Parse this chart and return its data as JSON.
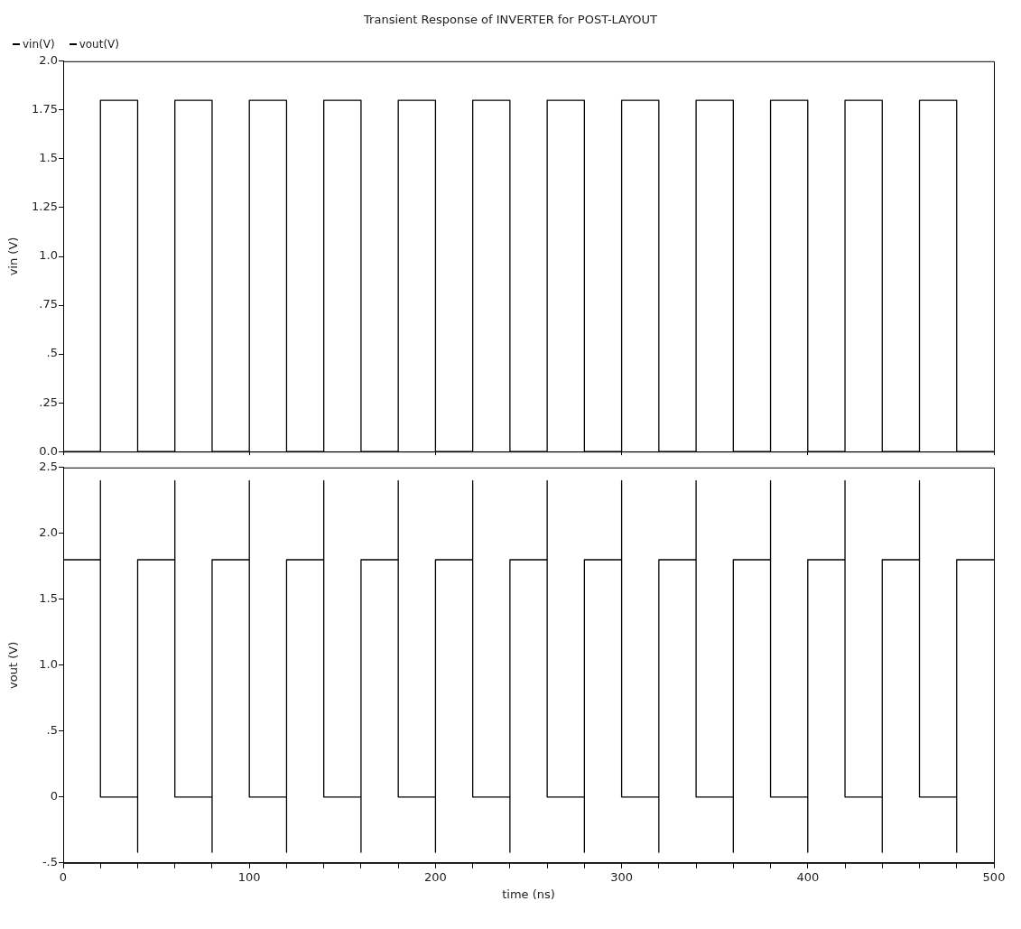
{
  "chart_data": [
    {
      "type": "line",
      "title": "Transient Response of INVERTER for POST-LAYOUT",
      "ylabel": "vin (V)",
      "legend": "top left",
      "grid": false,
      "tick_labels": "y",
      "marker": "none",
      "line_style": "solid",
      "xlim": [
        0,
        500
      ],
      "xticks": [
        0,
        100,
        200,
        300,
        400,
        500
      ],
      "ylim": [
        0,
        2.0
      ],
      "yticks": [
        {
          "value": 0,
          "label": "0.0"
        },
        {
          "value": 0.25,
          "label": ".25"
        },
        {
          "value": 0.5,
          "label": ".5"
        },
        {
          "value": 0.75,
          "label": ".75"
        },
        {
          "value": 1.0,
          "label": "1.0"
        },
        {
          "value": 1.25,
          "label": "1.25"
        },
        {
          "value": 1.5,
          "label": "1.5"
        },
        {
          "value": 1.75,
          "label": "1.75"
        },
        {
          "value": 2.0,
          "label": "2.0"
        }
      ],
      "series": [
        {
          "name": "vin(V)",
          "color": "#000000",
          "x": [
            0,
            20,
            20,
            40,
            40,
            60,
            60,
            80,
            80,
            100,
            100,
            120,
            120,
            140,
            140,
            160,
            160,
            180,
            180,
            200,
            200,
            220,
            220,
            240,
            240,
            260,
            260,
            280,
            280,
            300,
            300,
            320,
            320,
            340,
            340,
            360,
            360,
            380,
            380,
            400,
            400,
            420,
            420,
            440,
            440,
            460,
            460,
            480,
            480,
            500
          ],
          "values": [
            0,
            0,
            1.8,
            1.8,
            0,
            0,
            1.8,
            1.8,
            0,
            0,
            1.8,
            1.8,
            0,
            0,
            1.8,
            1.8,
            0,
            0,
            1.8,
            1.8,
            0,
            0,
            1.8,
            1.8,
            0,
            0,
            1.8,
            1.8,
            0,
            0,
            1.8,
            1.8,
            0,
            0,
            1.8,
            1.8,
            0,
            0,
            1.8,
            1.8,
            0,
            0,
            1.8,
            1.8,
            0,
            0,
            1.8,
            1.8,
            0,
            0
          ]
        }
      ]
    },
    {
      "type": "line",
      "xlabel": "time (ns)",
      "ylabel": "vout (V)",
      "legend": "top left",
      "grid": false,
      "marker": "none",
      "line_style": "solid",
      "xlim": [
        0,
        500
      ],
      "xticks": [
        0,
        {
          "value": 20,
          "label": null
        },
        {
          "value": 40,
          "label": null
        },
        {
          "value": 60,
          "label": null
        },
        {
          "value": 80,
          "label": null
        },
        100,
        {
          "value": 120,
          "label": null
        },
        {
          "value": 140,
          "label": null
        },
        {
          "value": 160,
          "label": null
        },
        {
          "value": 180,
          "label": null
        },
        200,
        {
          "value": 220,
          "label": null
        },
        {
          "value": 240,
          "label": null
        },
        {
          "value": 260,
          "label": null
        },
        {
          "value": 280,
          "label": null
        },
        300,
        {
          "value": 320,
          "label": null
        },
        {
          "value": 340,
          "label": null
        },
        {
          "value": 360,
          "label": null
        },
        {
          "value": 380,
          "label": null
        },
        400,
        {
          "value": 420,
          "label": null
        },
        {
          "value": 440,
          "label": null
        },
        {
          "value": 460,
          "label": null
        },
        {
          "value": 480,
          "label": null
        },
        500
      ],
      "ylim": [
        -0.5,
        2.5
      ],
      "yticks": [
        {
          "value": -0.5,
          "label": "-.5"
        },
        0,
        {
          "value": 0.5,
          "label": ".5"
        },
        {
          "value": 1.0,
          "label": "1.0"
        },
        {
          "value": 1.5,
          "label": "1.5"
        },
        {
          "value": 2.0,
          "label": "2.0"
        },
        {
          "value": 2.5,
          "label": "2.5"
        }
      ],
      "series": [
        {
          "name": "vout(V)",
          "color": "#000000",
          "x": [
            0,
            20,
            20,
            20,
            40,
            40,
            40,
            60,
            60,
            60,
            80,
            80,
            80,
            100,
            100,
            100,
            120,
            120,
            120,
            140,
            140,
            140,
            160,
            160,
            160,
            180,
            180,
            180,
            200,
            200,
            200,
            220,
            220,
            220,
            240,
            240,
            240,
            260,
            260,
            260,
            280,
            280,
            280,
            300,
            300,
            300,
            320,
            320,
            320,
            340,
            340,
            340,
            360,
            360,
            360,
            380,
            380,
            380,
            400,
            400,
            400,
            420,
            420,
            420,
            440,
            440,
            440,
            460,
            460,
            460,
            480,
            480,
            480,
            500
          ],
          "values": [
            1.8,
            1.8,
            2.4,
            0,
            0,
            -0.42,
            1.8,
            1.8,
            2.4,
            0,
            0,
            -0.42,
            1.8,
            1.8,
            2.4,
            0,
            0,
            -0.42,
            1.8,
            1.8,
            2.4,
            0,
            0,
            -0.42,
            1.8,
            1.8,
            2.4,
            0,
            0,
            -0.42,
            1.8,
            1.8,
            2.4,
            0,
            0,
            -0.42,
            1.8,
            1.8,
            2.4,
            0,
            0,
            -0.42,
            1.8,
            1.8,
            2.4,
            0,
            0,
            -0.42,
            1.8,
            1.8,
            2.4,
            0,
            0,
            -0.42,
            1.8,
            1.8,
            2.4,
            0,
            0,
            -0.42,
            1.8,
            1.8,
            2.4,
            0,
            0,
            -0.42,
            1.8,
            1.8,
            2.4,
            0,
            0,
            -0.42,
            1.8,
            1.8
          ]
        }
      ]
    }
  ]
}
